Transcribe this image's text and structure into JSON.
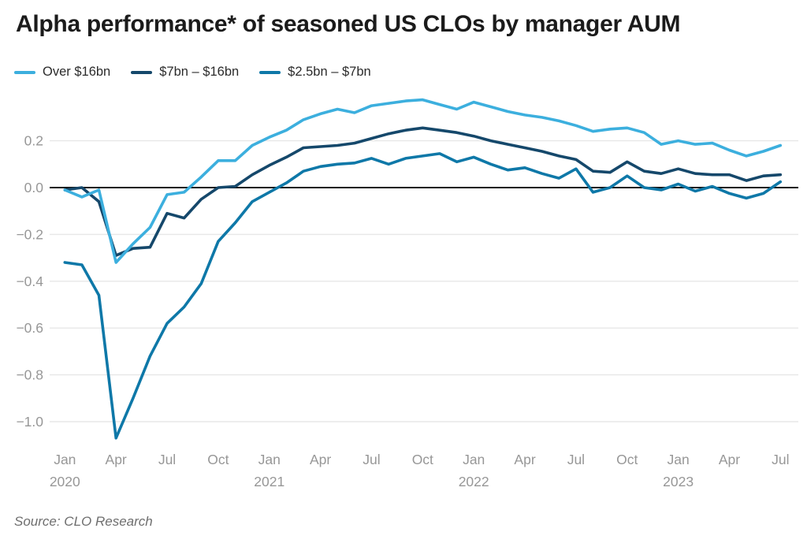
{
  "header": {
    "title": "Alpha performance* of seasoned US CLOs by manager AUM"
  },
  "legend": [
    {
      "label": "Over $16bn",
      "color": "#3CAFDE"
    },
    {
      "label": "$7bn – $16bn",
      "color": "#15486B"
    },
    {
      "label": "$2.5bn – $7bn",
      "color": "#0E78A8"
    }
  ],
  "footer": {
    "source": "Source: CLO Research"
  },
  "chart_data": {
    "type": "line",
    "title": "Alpha performance* of seasoned US CLOs by manager AUM",
    "xlabel": "",
    "ylabel": "",
    "grid": "horizontal",
    "zero_line": true,
    "legend_position": "top-left",
    "ylim": [
      -1.16,
      0.4
    ],
    "y_ticks": [
      {
        "v": 0.2,
        "label": "0.2"
      },
      {
        "v": 0.0,
        "label": "0.0"
      },
      {
        "v": -0.2,
        "label": "−0.2"
      },
      {
        "v": -0.4,
        "label": "−0.4"
      },
      {
        "v": -0.6,
        "label": "−0.6"
      },
      {
        "v": -0.8,
        "label": "−0.8"
      },
      {
        "v": -1.0,
        "label": "−1.0"
      }
    ],
    "x_ticks": [
      {
        "index": 0,
        "label": "Jan",
        "year": "2020"
      },
      {
        "index": 3,
        "label": "Apr"
      },
      {
        "index": 6,
        "label": "Jul"
      },
      {
        "index": 9,
        "label": "Oct"
      },
      {
        "index": 12,
        "label": "Jan",
        "year": "2021"
      },
      {
        "index": 15,
        "label": "Apr"
      },
      {
        "index": 18,
        "label": "Jul"
      },
      {
        "index": 21,
        "label": "Oct"
      },
      {
        "index": 24,
        "label": "Jan",
        "year": "2022"
      },
      {
        "index": 27,
        "label": "Apr"
      },
      {
        "index": 30,
        "label": "Jul"
      },
      {
        "index": 33,
        "label": "Oct"
      },
      {
        "index": 36,
        "label": "Jan",
        "year": "2023"
      },
      {
        "index": 39,
        "label": "Apr"
      },
      {
        "index": 42,
        "label": "Jul"
      }
    ],
    "categories": [
      "Jan 2020",
      "Feb 2020",
      "Mar 2020",
      "Apr 2020",
      "May 2020",
      "Jun 2020",
      "Jul 2020",
      "Aug 2020",
      "Sep 2020",
      "Oct 2020",
      "Nov 2020",
      "Dec 2020",
      "Jan 2021",
      "Feb 2021",
      "Mar 2021",
      "Apr 2021",
      "May 2021",
      "Jun 2021",
      "Jul 2021",
      "Aug 2021",
      "Sep 2021",
      "Oct 2021",
      "Nov 2021",
      "Dec 2021",
      "Jan 2022",
      "Feb 2022",
      "Mar 2022",
      "Apr 2022",
      "May 2022",
      "Jun 2022",
      "Jul 2022",
      "Aug 2022",
      "Sep 2022",
      "Oct 2022",
      "Nov 2022",
      "Dec 2022",
      "Jan 2023",
      "Feb 2023",
      "Mar 2023",
      "Apr 2023",
      "May 2023",
      "Jun 2023",
      "Jul 2023"
    ],
    "series": [
      {
        "name": "Over $16bn",
        "color": "#3CAFDE",
        "values": [
          -0.01,
          -0.04,
          -0.01,
          -0.32,
          -0.24,
          -0.17,
          -0.03,
          -0.02,
          0.045,
          0.115,
          0.115,
          0.18,
          0.215,
          0.245,
          0.29,
          0.315,
          0.335,
          0.32,
          0.35,
          0.36,
          0.37,
          0.375,
          0.355,
          0.335,
          0.365,
          0.345,
          0.325,
          0.31,
          0.3,
          0.285,
          0.265,
          0.24,
          0.25,
          0.255,
          0.235,
          0.185,
          0.2,
          0.185,
          0.19,
          0.16,
          0.135,
          0.155,
          0.18
        ]
      },
      {
        "name": "$7bn – $16bn",
        "color": "#15486B",
        "values": [
          -0.01,
          0.0,
          -0.06,
          -0.29,
          -0.26,
          -0.255,
          -0.11,
          -0.13,
          -0.05,
          0.0,
          0.005,
          0.055,
          0.095,
          0.13,
          0.17,
          0.175,
          0.18,
          0.19,
          0.21,
          0.23,
          0.245,
          0.255,
          0.245,
          0.235,
          0.22,
          0.2,
          0.185,
          0.17,
          0.155,
          0.135,
          0.12,
          0.07,
          0.065,
          0.11,
          0.07,
          0.06,
          0.08,
          0.06,
          0.055,
          0.055,
          0.03,
          0.05,
          0.055
        ]
      },
      {
        "name": "$2.5bn – $7bn",
        "color": "#0E78A8",
        "values": [
          -0.32,
          -0.33,
          -0.46,
          -1.07,
          -0.9,
          -0.72,
          -0.58,
          -0.51,
          -0.41,
          -0.23,
          -0.15,
          -0.06,
          -0.02,
          0.02,
          0.07,
          0.09,
          0.1,
          0.105,
          0.125,
          0.1,
          0.125,
          0.135,
          0.145,
          0.11,
          0.13,
          0.1,
          0.075,
          0.085,
          0.06,
          0.04,
          0.08,
          -0.02,
          0.0,
          0.05,
          0.0,
          -0.01,
          0.015,
          -0.015,
          0.005,
          -0.025,
          -0.045,
          -0.025,
          0.025
        ]
      }
    ],
    "style": {
      "grid_color": "#e7e7e7",
      "zero_line_color": "#141414",
      "tick_label_color": "#979797",
      "line_width": 3.6
    }
  }
}
